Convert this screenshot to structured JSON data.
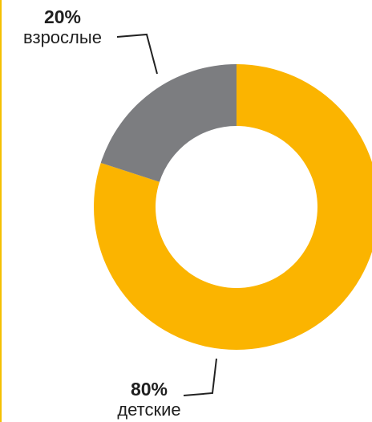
{
  "chart_data": {
    "type": "pie",
    "donut": true,
    "title": "",
    "slices": [
      {
        "label": "детские",
        "value": 80,
        "value_label": "80%",
        "color": "#FBB400"
      },
      {
        "label": "взрослые",
        "value": 20,
        "value_label": "20%",
        "color": "#7C7D80"
      }
    ],
    "legend": "none"
  }
}
